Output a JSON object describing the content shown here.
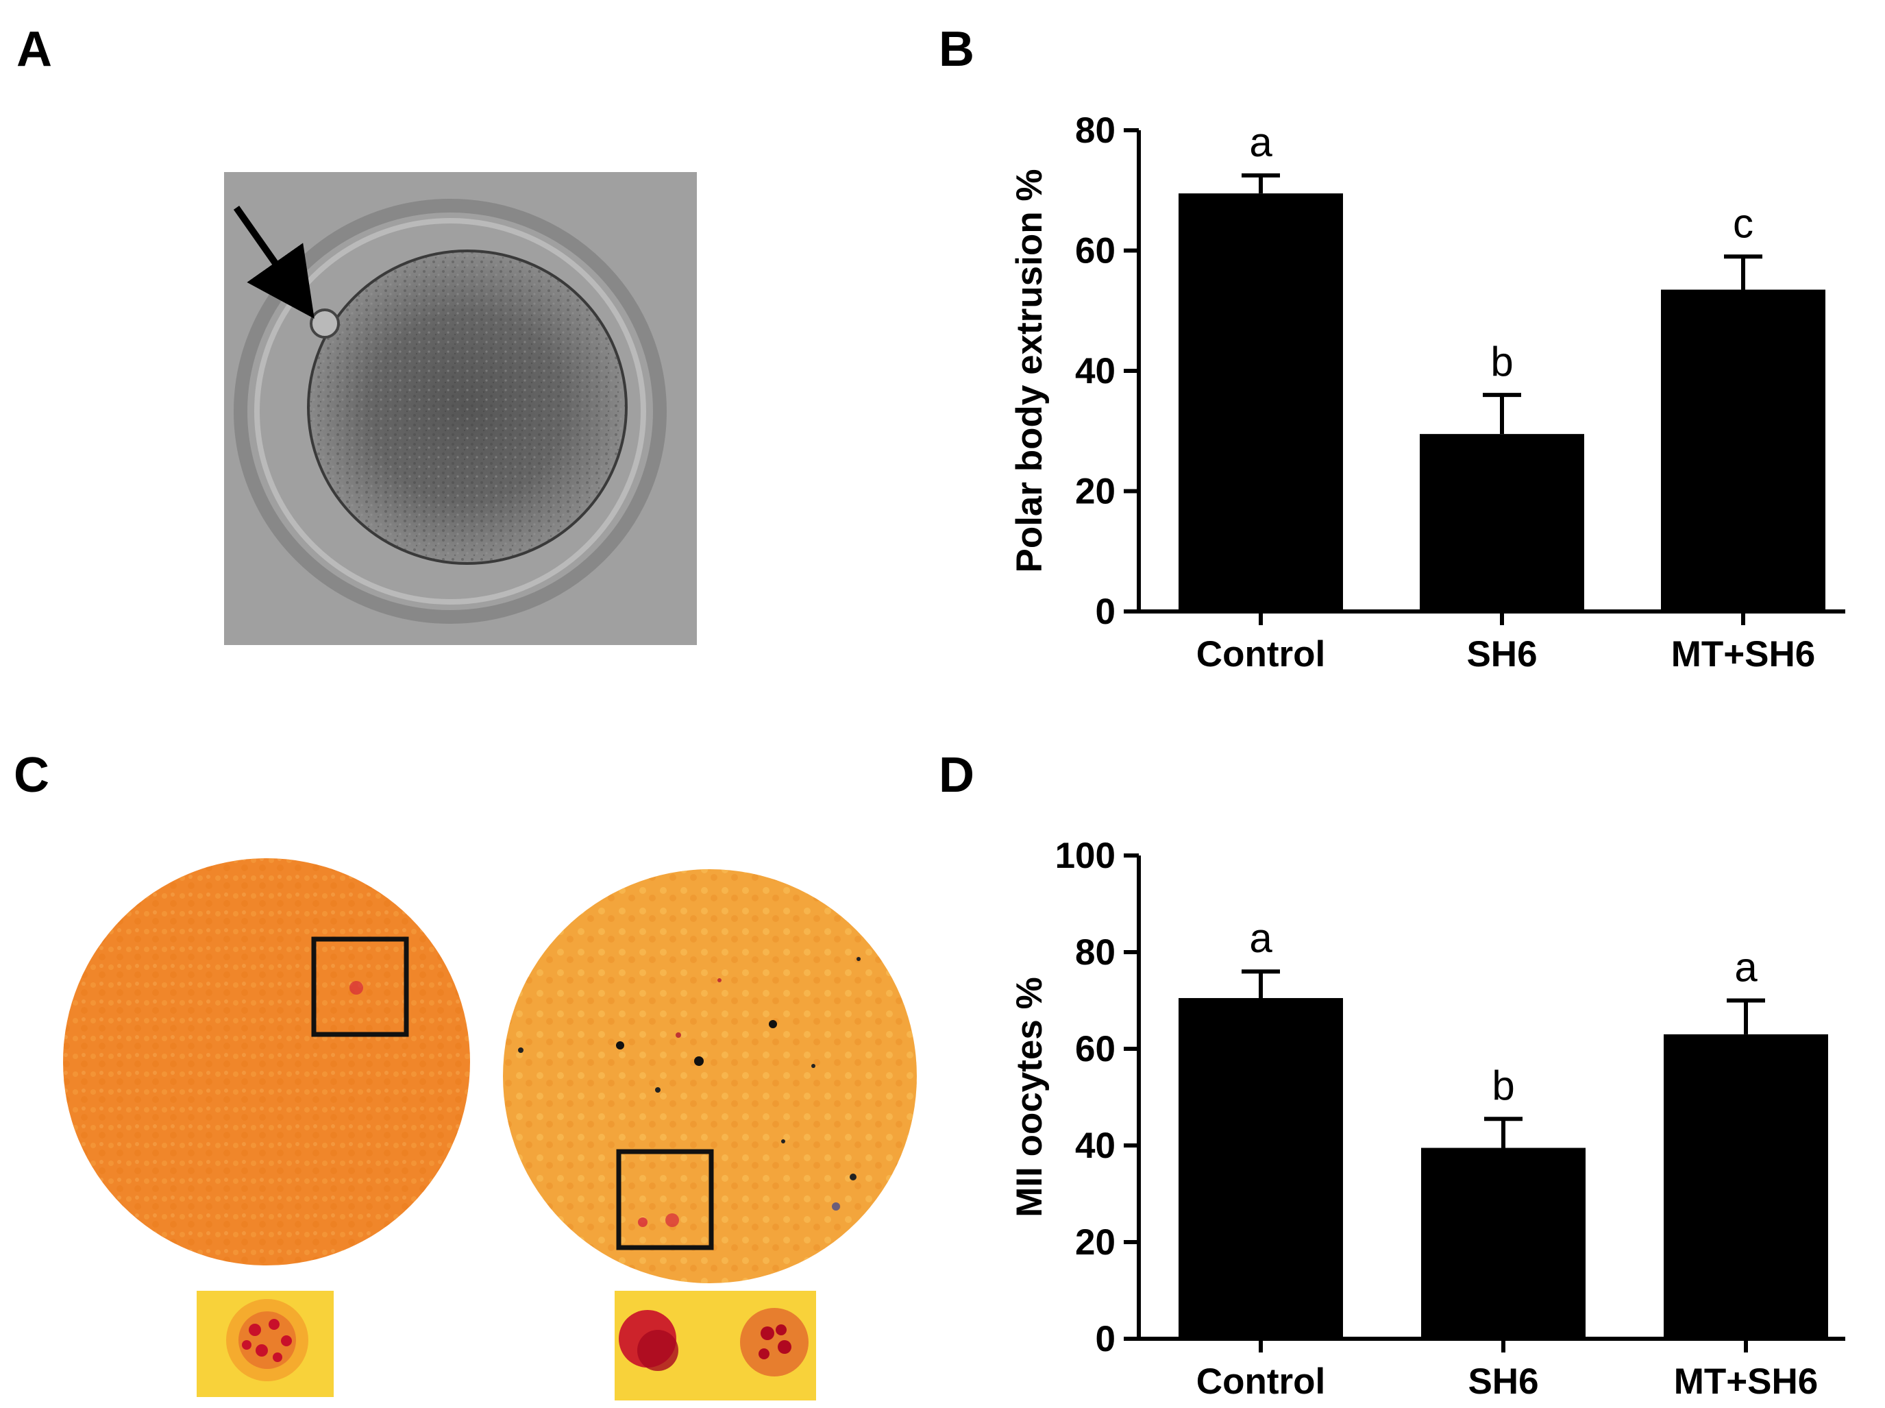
{
  "panels": {
    "a": "A",
    "b": "B",
    "c": "C",
    "d": "D"
  },
  "colors": {
    "bar": "#000000",
    "micrograph_gray": "#9a9a9a",
    "stain_orange": "#f08a22",
    "stain_light": "#f5a83a",
    "stain_red": "#d6283a"
  },
  "chart_data": [
    {
      "type": "bar",
      "panel": "B",
      "categories": [
        "Control",
        "SH6",
        "MT+SH6"
      ],
      "values": [
        69.5,
        29.5,
        53.5
      ],
      "errors": [
        3,
        6.5,
        5.5
      ],
      "significance": [
        "a",
        "b",
        "c"
      ],
      "ylabel": "Polar body extrusion %",
      "ylim": [
        0,
        80
      ],
      "yticks": [
        0,
        20,
        40,
        60,
        80
      ]
    },
    {
      "type": "bar",
      "panel": "D",
      "categories": [
        "Control",
        "SH6",
        "MT+SH6"
      ],
      "values": [
        70.5,
        39.5,
        63
      ],
      "errors": [
        5.5,
        6,
        7
      ],
      "significance": [
        "a",
        "b",
        "a"
      ],
      "ylabel": "MII oocytes %",
      "ylim": [
        0,
        100
      ],
      "yticks": [
        0,
        20,
        40,
        60,
        80,
        100
      ]
    }
  ]
}
